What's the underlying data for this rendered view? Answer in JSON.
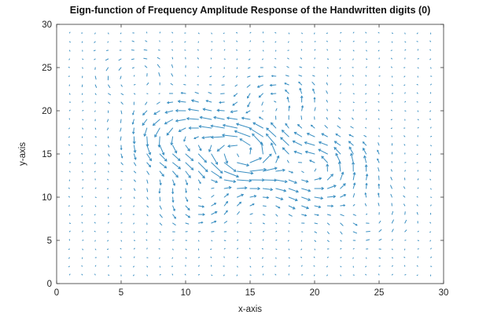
{
  "chart_data": {
    "type": "quiver",
    "title": "Eign-function of Frequency Amplitude Response of the Handwritten digits (0)",
    "xlabel": "x-axis",
    "ylabel": "y-axis",
    "xlim": [
      0,
      30
    ],
    "ylim": [
      0,
      30
    ],
    "xticks": [
      0,
      5,
      10,
      15,
      20,
      25,
      30
    ],
    "yticks": [
      0,
      5,
      10,
      15,
      20,
      25,
      30
    ],
    "grid": false,
    "box": true,
    "color": "#3a8fc2",
    "grid_points": {
      "x_start": 1,
      "x_end": 29,
      "y_start": 1,
      "y_end": 29,
      "step": 1
    },
    "vortices": [
      {
        "x": 14.5,
        "y": 15,
        "strength": 1.0,
        "spread": 2.2
      },
      {
        "x": 10,
        "y": 17,
        "strength": 0.5,
        "spread": 2.5
      },
      {
        "x": 20,
        "y": 13,
        "strength": 0.5,
        "spread": 2.5
      },
      {
        "x": 17,
        "y": 21,
        "strength": 0.35,
        "spread": 2.0
      },
      {
        "x": 11,
        "y": 10,
        "strength": 0.35,
        "spread": 2.0
      },
      {
        "x": 6,
        "y": 24,
        "strength": 0.2,
        "spread": 2.0
      },
      {
        "x": 24,
        "y": 8,
        "strength": 0.2,
        "spread": 2.0
      }
    ]
  }
}
